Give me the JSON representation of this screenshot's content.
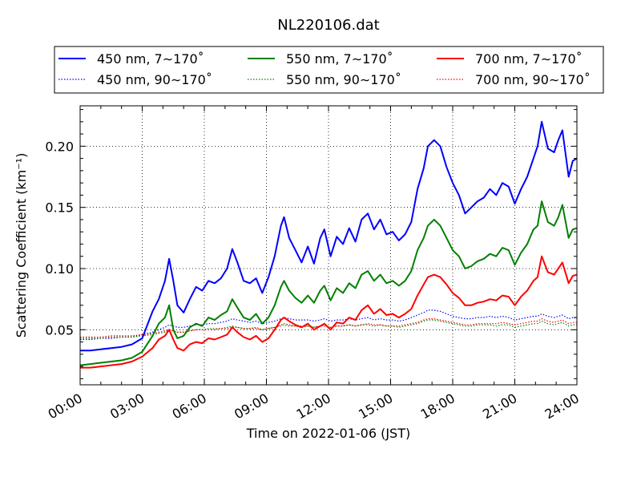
{
  "chart_data": {
    "type": "line",
    "title": "NL220106.dat",
    "xlabel": "Time on 2022-01-06 (JST)",
    "ylabel": "Scattering Coefficient (km⁻¹)",
    "xlim": [
      0,
      24
    ],
    "ylim": [
      0.005,
      0.233
    ],
    "x_ticks": [
      0,
      3,
      6,
      9,
      12,
      15,
      18,
      21,
      24
    ],
    "x_tick_labels": [
      "00:00",
      "03:00",
      "06:00",
      "09:00",
      "12:00",
      "15:00",
      "18:00",
      "21:00",
      "24:00"
    ],
    "y_ticks": [
      0.05,
      0.1,
      0.15,
      0.2
    ],
    "y_tick_labels": [
      "0.05",
      "0.10",
      "0.15",
      "0.20"
    ],
    "grid": true,
    "legend": {
      "placement": "top",
      "columns": 3
    },
    "x": [
      0.0,
      0.5,
      1.0,
      1.5,
      2.0,
      2.5,
      3.0,
      3.5,
      3.8,
      4.1,
      4.3,
      4.5,
      4.7,
      5.0,
      5.3,
      5.6,
      5.9,
      6.2,
      6.5,
      6.8,
      7.1,
      7.35,
      7.6,
      7.9,
      8.2,
      8.5,
      8.8,
      9.1,
      9.4,
      9.7,
      9.85,
      10.1,
      10.4,
      10.7,
      11.0,
      11.3,
      11.6,
      11.8,
      12.1,
      12.4,
      12.7,
      13.0,
      13.3,
      13.6,
      13.9,
      14.2,
      14.5,
      14.8,
      15.1,
      15.4,
      15.7,
      16.0,
      16.3,
      16.6,
      16.8,
      17.1,
      17.4,
      17.7,
      18.0,
      18.3,
      18.6,
      18.9,
      19.2,
      19.5,
      19.8,
      20.1,
      20.4,
      20.7,
      21.0,
      21.3,
      21.6,
      21.9,
      22.1,
      22.3,
      22.6,
      22.9,
      23.1,
      23.3,
      23.6,
      23.8,
      24.0
    ],
    "series": [
      {
        "name": "450 nm, 7∼170˚",
        "color": "#0000ff",
        "style": "solid",
        "values": [
          0.033,
          0.033,
          0.034,
          0.035,
          0.036,
          0.038,
          0.043,
          0.065,
          0.075,
          0.09,
          0.108,
          0.09,
          0.07,
          0.064,
          0.075,
          0.085,
          0.082,
          0.09,
          0.088,
          0.092,
          0.1,
          0.116,
          0.105,
          0.09,
          0.088,
          0.092,
          0.08,
          0.093,
          0.11,
          0.135,
          0.142,
          0.125,
          0.115,
          0.105,
          0.118,
          0.104,
          0.125,
          0.132,
          0.11,
          0.126,
          0.12,
          0.133,
          0.122,
          0.14,
          0.145,
          0.132,
          0.14,
          0.128,
          0.13,
          0.123,
          0.128,
          0.138,
          0.165,
          0.182,
          0.2,
          0.205,
          0.2,
          0.183,
          0.17,
          0.16,
          0.145,
          0.15,
          0.155,
          0.158,
          0.165,
          0.16,
          0.17,
          0.167,
          0.153,
          0.165,
          0.175,
          0.19,
          0.2,
          0.22,
          0.198,
          0.195,
          0.205,
          0.213,
          0.175,
          0.188,
          0.19
        ]
      },
      {
        "name": "550 nm, 7∼170˚",
        "color": "#008000",
        "style": "solid",
        "values": [
          0.021,
          0.022,
          0.023,
          0.024,
          0.025,
          0.027,
          0.032,
          0.045,
          0.055,
          0.06,
          0.07,
          0.05,
          0.043,
          0.045,
          0.052,
          0.055,
          0.053,
          0.06,
          0.058,
          0.062,
          0.065,
          0.075,
          0.068,
          0.06,
          0.058,
          0.063,
          0.055,
          0.06,
          0.07,
          0.085,
          0.09,
          0.082,
          0.076,
          0.072,
          0.078,
          0.072,
          0.082,
          0.086,
          0.074,
          0.084,
          0.08,
          0.088,
          0.084,
          0.095,
          0.098,
          0.09,
          0.095,
          0.088,
          0.09,
          0.086,
          0.09,
          0.098,
          0.115,
          0.125,
          0.135,
          0.14,
          0.135,
          0.125,
          0.115,
          0.11,
          0.1,
          0.102,
          0.106,
          0.108,
          0.112,
          0.11,
          0.117,
          0.115,
          0.103,
          0.113,
          0.12,
          0.132,
          0.135,
          0.155,
          0.138,
          0.135,
          0.142,
          0.152,
          0.125,
          0.132,
          0.133
        ]
      },
      {
        "name": "700 nm, 7∼170˚",
        "color": "#ff0000",
        "style": "solid",
        "values": [
          0.019,
          0.019,
          0.02,
          0.021,
          0.022,
          0.024,
          0.028,
          0.035,
          0.042,
          0.045,
          0.05,
          0.042,
          0.035,
          0.033,
          0.038,
          0.04,
          0.039,
          0.043,
          0.042,
          0.044,
          0.046,
          0.052,
          0.048,
          0.044,
          0.042,
          0.045,
          0.04,
          0.043,
          0.05,
          0.058,
          0.06,
          0.057,
          0.054,
          0.052,
          0.055,
          0.05,
          0.053,
          0.055,
          0.05,
          0.056,
          0.055,
          0.06,
          0.058,
          0.066,
          0.07,
          0.063,
          0.067,
          0.062,
          0.063,
          0.06,
          0.063,
          0.067,
          0.078,
          0.087,
          0.093,
          0.095,
          0.093,
          0.087,
          0.08,
          0.076,
          0.07,
          0.07,
          0.072,
          0.073,
          0.075,
          0.074,
          0.078,
          0.077,
          0.07,
          0.077,
          0.082,
          0.09,
          0.093,
          0.11,
          0.097,
          0.095,
          0.1,
          0.105,
          0.088,
          0.094,
          0.095
        ]
      },
      {
        "name": "450 nm, 90∼170˚",
        "color": "#0000ff",
        "style": "dotted",
        "values": [
          0.042,
          0.042,
          0.043,
          0.043,
          0.044,
          0.044,
          0.046,
          0.048,
          0.05,
          0.052,
          0.054,
          0.053,
          0.052,
          0.052,
          0.053,
          0.054,
          0.054,
          0.055,
          0.055,
          0.056,
          0.057,
          0.059,
          0.058,
          0.057,
          0.056,
          0.057,
          0.055,
          0.056,
          0.057,
          0.059,
          0.06,
          0.059,
          0.058,
          0.058,
          0.058,
          0.057,
          0.058,
          0.059,
          0.057,
          0.058,
          0.058,
          0.059,
          0.058,
          0.059,
          0.06,
          0.058,
          0.059,
          0.058,
          0.058,
          0.057,
          0.058,
          0.06,
          0.062,
          0.064,
          0.066,
          0.066,
          0.065,
          0.063,
          0.061,
          0.06,
          0.059,
          0.059,
          0.06,
          0.06,
          0.061,
          0.06,
          0.061,
          0.06,
          0.058,
          0.059,
          0.06,
          0.061,
          0.061,
          0.063,
          0.061,
          0.06,
          0.061,
          0.062,
          0.059,
          0.06,
          0.06
        ]
      },
      {
        "name": "550 nm, 90∼170˚",
        "color": "#008000",
        "style": "dotted",
        "values": [
          0.043,
          0.043,
          0.043,
          0.044,
          0.044,
          0.044,
          0.045,
          0.046,
          0.047,
          0.048,
          0.05,
          0.049,
          0.048,
          0.048,
          0.049,
          0.05,
          0.05,
          0.051,
          0.051,
          0.051,
          0.052,
          0.053,
          0.052,
          0.051,
          0.051,
          0.052,
          0.05,
          0.051,
          0.052,
          0.054,
          0.055,
          0.054,
          0.053,
          0.053,
          0.053,
          0.052,
          0.053,
          0.054,
          0.052,
          0.053,
          0.053,
          0.054,
          0.053,
          0.054,
          0.054,
          0.053,
          0.054,
          0.053,
          0.053,
          0.052,
          0.053,
          0.054,
          0.055,
          0.057,
          0.058,
          0.058,
          0.057,
          0.056,
          0.055,
          0.054,
          0.053,
          0.053,
          0.054,
          0.054,
          0.054,
          0.053,
          0.054,
          0.054,
          0.052,
          0.053,
          0.054,
          0.055,
          0.055,
          0.057,
          0.055,
          0.054,
          0.055,
          0.056,
          0.053,
          0.054,
          0.054
        ]
      },
      {
        "name": "700 nm, 90∼170˚",
        "color": "#ff0000",
        "style": "dotted",
        "values": [
          0.044,
          0.044,
          0.044,
          0.045,
          0.045,
          0.045,
          0.046,
          0.047,
          0.048,
          0.049,
          0.05,
          0.049,
          0.048,
          0.048,
          0.049,
          0.05,
          0.05,
          0.05,
          0.05,
          0.051,
          0.051,
          0.052,
          0.052,
          0.051,
          0.051,
          0.051,
          0.05,
          0.051,
          0.052,
          0.053,
          0.054,
          0.053,
          0.053,
          0.052,
          0.053,
          0.052,
          0.053,
          0.053,
          0.052,
          0.053,
          0.053,
          0.054,
          0.053,
          0.054,
          0.055,
          0.054,
          0.054,
          0.053,
          0.053,
          0.053,
          0.054,
          0.055,
          0.056,
          0.058,
          0.059,
          0.059,
          0.058,
          0.057,
          0.056,
          0.055,
          0.054,
          0.054,
          0.055,
          0.055,
          0.055,
          0.055,
          0.056,
          0.055,
          0.054,
          0.055,
          0.056,
          0.057,
          0.057,
          0.059,
          0.057,
          0.056,
          0.057,
          0.058,
          0.055,
          0.056,
          0.056
        ]
      }
    ]
  }
}
